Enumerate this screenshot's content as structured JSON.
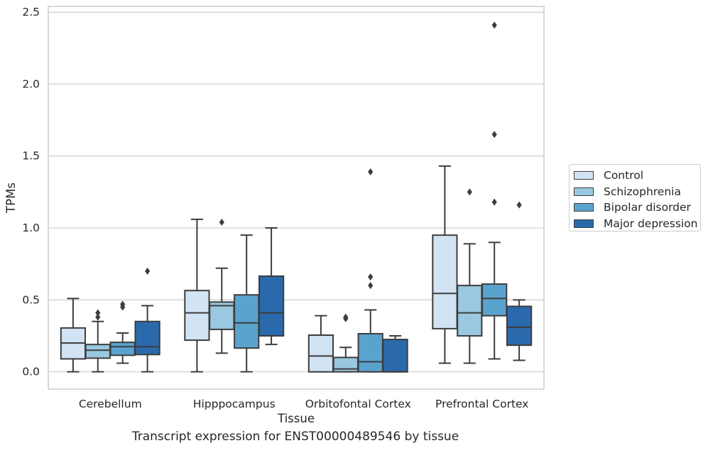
{
  "caption": "Transcript expression for ENST00000489546 by tissue",
  "chart_data": {
    "type": "box",
    "xlabel": "Tissue",
    "ylabel": "TPMs",
    "ylim": [
      -0.12,
      2.54
    ],
    "yticks": [
      "0.0",
      "0.5",
      "1.0",
      "1.5",
      "2.0",
      "2.5"
    ],
    "grid": true,
    "legend_position": "right",
    "categories": [
      "Cerebellum",
      "Hipppocampus",
      "Orbitofontal Cortex",
      "Prefrontal Cortex"
    ],
    "series": [
      {
        "name": "Control",
        "color": "#d2e3f3",
        "boxes": [
          {
            "whislo": 0.0,
            "q1": 0.09,
            "med": 0.2,
            "q3": 0.305,
            "whishi": 0.51,
            "fliers": []
          },
          {
            "whislo": 0.0,
            "q1": 0.22,
            "med": 0.41,
            "q3": 0.565,
            "whishi": 1.06,
            "fliers": []
          },
          {
            "whislo": 0.0,
            "q1": 0.0,
            "med": 0.11,
            "q3": 0.255,
            "whishi": 0.39,
            "fliers": []
          },
          {
            "whislo": 0.06,
            "q1": 0.3,
            "med": 0.545,
            "q3": 0.95,
            "whishi": 1.43,
            "fliers": []
          }
        ]
      },
      {
        "name": "Schizophrenia",
        "color": "#9ac8e0",
        "boxes": [
          {
            "whislo": 0.0,
            "q1": 0.095,
            "med": 0.15,
            "q3": 0.19,
            "whishi": 0.35,
            "fliers": [
              0.38,
              0.41
            ]
          },
          {
            "whislo": 0.13,
            "q1": 0.295,
            "med": 0.46,
            "q3": 0.485,
            "whishi": 0.72,
            "fliers": [
              1.04
            ]
          },
          {
            "whislo": 0.0,
            "q1": 0.0,
            "med": 0.02,
            "q3": 0.1,
            "whishi": 0.17,
            "fliers": [
              0.37,
              0.38
            ]
          },
          {
            "whislo": 0.06,
            "q1": 0.25,
            "med": 0.41,
            "q3": 0.6,
            "whishi": 0.89,
            "fliers": [
              1.25
            ]
          }
        ]
      },
      {
        "name": "Bipolar disorder",
        "color": "#5ba3cf",
        "boxes": [
          {
            "whislo": 0.06,
            "q1": 0.115,
            "med": 0.175,
            "q3": 0.205,
            "whishi": 0.27,
            "fliers": [
              0.45,
              0.47
            ]
          },
          {
            "whislo": 0.0,
            "q1": 0.165,
            "med": 0.34,
            "q3": 0.535,
            "whishi": 0.95,
            "fliers": []
          },
          {
            "whislo": 0.0,
            "q1": 0.0,
            "med": 0.07,
            "q3": 0.265,
            "whishi": 0.43,
            "fliers": [
              0.6,
              0.66,
              1.39
            ]
          },
          {
            "whislo": 0.09,
            "q1": 0.39,
            "med": 0.51,
            "q3": 0.61,
            "whishi": 0.9,
            "fliers": [
              1.18,
              1.65,
              2.41
            ]
          }
        ]
      },
      {
        "name": "Major depression",
        "color": "#2a6aac",
        "boxes": [
          {
            "whislo": 0.0,
            "q1": 0.12,
            "med": 0.175,
            "q3": 0.35,
            "whishi": 0.46,
            "fliers": [
              0.7
            ]
          },
          {
            "whislo": 0.19,
            "q1": 0.25,
            "med": 0.41,
            "q3": 0.665,
            "whishi": 1.0,
            "fliers": []
          },
          {
            "whislo": 0.0,
            "q1": 0.0,
            "med": 0.0,
            "q3": 0.225,
            "whishi": 0.25,
            "fliers": []
          },
          {
            "whislo": 0.08,
            "q1": 0.185,
            "med": 0.31,
            "q3": 0.455,
            "whishi": 0.5,
            "fliers": [
              1.16
            ]
          }
        ]
      }
    ]
  }
}
